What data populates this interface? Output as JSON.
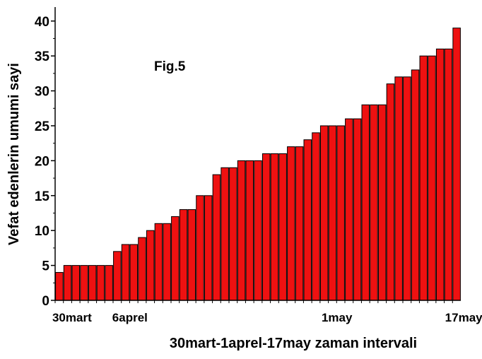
{
  "chart_data": {
    "type": "bar",
    "title": "Fig.5",
    "x_label": "30mart-1aprel-17may zaman intervali",
    "y_label": "Vefat edenlerin umumi sayi",
    "categories": [
      "30mart",
      null,
      null,
      null,
      null,
      null,
      null,
      "6aprel",
      null,
      null,
      null,
      null,
      null,
      null,
      null,
      null,
      null,
      null,
      null,
      null,
      null,
      null,
      null,
      null,
      null,
      null,
      null,
      null,
      null,
      null,
      null,
      null,
      "1may",
      null,
      null,
      null,
      null,
      null,
      null,
      null,
      null,
      null,
      null,
      null,
      null,
      null,
      null,
      null,
      "17may"
    ],
    "values": [
      4,
      5,
      5,
      5,
      5,
      5,
      5,
      7,
      8,
      8,
      9,
      10,
      11,
      11,
      12,
      13,
      13,
      15,
      15,
      18,
      19,
      19,
      20,
      20,
      20,
      21,
      21,
      21,
      22,
      22,
      23,
      24,
      25,
      25,
      25,
      26,
      26,
      28,
      28,
      28,
      31,
      32,
      32,
      33,
      35,
      35,
      36,
      36,
      39
    ],
    "color": "#ee1111",
    "ylim": [
      0,
      42
    ],
    "yticks": [
      0,
      5,
      10,
      15,
      20,
      25,
      30,
      35,
      40
    ]
  }
}
